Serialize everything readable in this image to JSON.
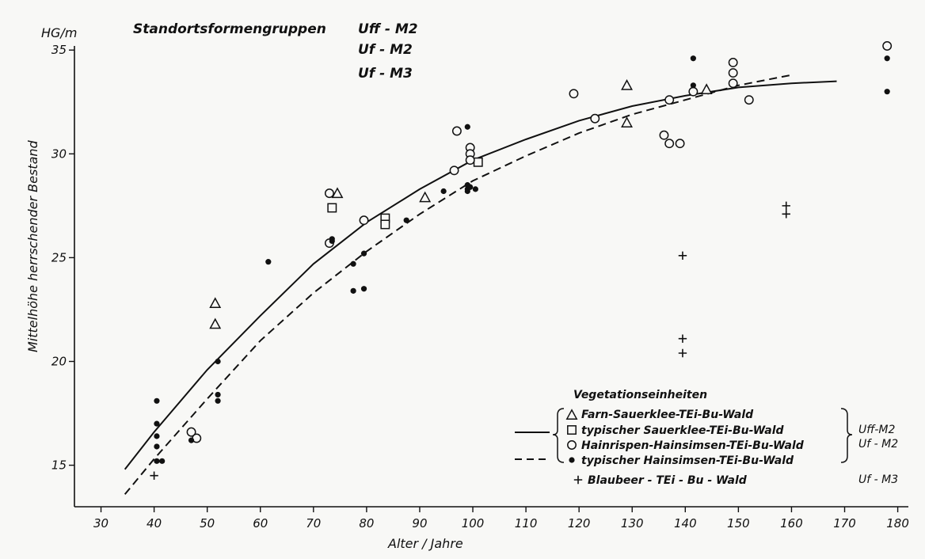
{
  "chart_data": {
    "type": "scatter",
    "title": "Standortsformengruppen",
    "title_groups": [
      "Uff - M2",
      "Uf - M2",
      "Uf - M3"
    ],
    "y_unit": "HG/m",
    "xlabel": "Alter / Jahre",
    "ylabel": "Mittelhöhe herrschender Bestand",
    "xlim": [
      25,
      182
    ],
    "ylim": [
      13,
      35.2
    ],
    "x_ticks": [
      30,
      40,
      50,
      60,
      70,
      80,
      90,
      100,
      110,
      120,
      130,
      140,
      150,
      160,
      170,
      180
    ],
    "y_ticks": [
      15,
      20,
      25,
      30,
      35
    ],
    "grid": false,
    "legend_position": "bottom-right",
    "legend_title": "Vegetationseinheiten",
    "series": [
      {
        "name": "Farn-Sauerklee-TEi-Bu-Wald",
        "marker": "triangle",
        "points": [
          [
            51.5,
            22.8
          ],
          [
            51.5,
            21.8
          ],
          [
            74.5,
            28.1
          ],
          [
            91,
            27.9
          ],
          [
            129,
            33.3
          ],
          [
            129,
            31.5
          ],
          [
            144,
            33.1
          ]
        ]
      },
      {
        "name": "typischer Sauerklee-TEi-Bu-Wald",
        "marker": "square",
        "points": [
          [
            73.5,
            27.4
          ],
          [
            83.5,
            26.9
          ],
          [
            83.5,
            26.6
          ],
          [
            101,
            29.6
          ]
        ]
      },
      {
        "name": "Hainrispen-Hainsimsen-TEi-Bu-Wald",
        "marker": "circle-open",
        "points": [
          [
            47,
            16.6
          ],
          [
            48,
            16.3
          ],
          [
            73,
            28.1
          ],
          [
            73,
            25.7
          ],
          [
            79.5,
            26.8
          ],
          [
            96.5,
            29.2
          ],
          [
            97,
            31.1
          ],
          [
            99.5,
            30.3
          ],
          [
            99.5,
            30
          ],
          [
            99.5,
            29.7
          ],
          [
            119,
            32.9
          ],
          [
            123,
            31.7
          ],
          [
            136,
            30.9
          ],
          [
            137,
            32.6
          ],
          [
            137,
            30.5
          ],
          [
            139,
            30.5
          ],
          [
            141.5,
            33
          ],
          [
            149,
            34.4
          ],
          [
            149,
            33.9
          ],
          [
            149,
            33.4
          ],
          [
            152,
            32.6
          ],
          [
            178,
            35.2
          ]
        ]
      },
      {
        "name": "typischer Hainsimsen-TEi-Bu-Wald",
        "marker": "circle-filled",
        "points": [
          [
            40.5,
            18.1
          ],
          [
            40.5,
            17
          ],
          [
            40.5,
            16.4
          ],
          [
            40.5,
            15.9
          ],
          [
            40.5,
            15.2
          ],
          [
            41.5,
            15.2
          ],
          [
            47,
            16.2
          ],
          [
            52,
            20
          ],
          [
            52,
            18.4
          ],
          [
            52,
            18.1
          ],
          [
            73.5,
            25.9
          ],
          [
            73.5,
            25.8
          ],
          [
            61.5,
            24.8
          ],
          [
            77.5,
            24.7
          ],
          [
            79.5,
            25.2
          ],
          [
            77.5,
            23.4
          ],
          [
            79.5,
            23.5
          ],
          [
            87.5,
            26.8
          ],
          [
            94.5,
            28.2
          ],
          [
            99,
            31.3
          ],
          [
            99,
            28.5
          ],
          [
            99,
            28.3
          ],
          [
            99,
            28.2
          ],
          [
            99.5,
            28.4
          ],
          [
            100.5,
            28.3
          ],
          [
            141.5,
            34.6
          ],
          [
            141.5,
            33.3
          ],
          [
            178,
            34.6
          ],
          [
            178,
            33
          ]
        ]
      },
      {
        "name": "Blaubeer-TEi-Bu-Wald",
        "marker": "plus",
        "points": [
          [
            40,
            14.5
          ],
          [
            139.5,
            25.1
          ],
          [
            139.5,
            21.1
          ],
          [
            139.5,
            20.4
          ],
          [
            159,
            27.5
          ],
          [
            159,
            27.1
          ]
        ]
      }
    ],
    "curves": [
      {
        "name": "Uff-M2, Uf-M2",
        "style": "solid",
        "points": [
          [
            34.5,
            14.8
          ],
          [
            40,
            16.6
          ],
          [
            50,
            19.6
          ],
          [
            60,
            22.2
          ],
          [
            70,
            24.7
          ],
          [
            80,
            26.7
          ],
          [
            90,
            28.3
          ],
          [
            100,
            29.7
          ],
          [
            110,
            30.7
          ],
          [
            120,
            31.6
          ],
          [
            130,
            32.3
          ],
          [
            140,
            32.8
          ],
          [
            150,
            33.2
          ],
          [
            160,
            33.4
          ],
          [
            168.5,
            33.5
          ]
        ]
      },
      {
        "name": "Uf-M2",
        "style": "dashed",
        "points": [
          [
            34.5,
            13.6
          ],
          [
            40,
            15.3
          ],
          [
            50,
            18.2
          ],
          [
            60,
            21
          ],
          [
            70,
            23.3
          ],
          [
            80,
            25.3
          ],
          [
            90,
            27.1
          ],
          [
            100,
            28.7
          ],
          [
            110,
            29.9
          ],
          [
            120,
            31
          ],
          [
            130,
            31.9
          ],
          [
            140,
            32.6
          ],
          [
            150,
            33.3
          ],
          [
            160,
            33.8
          ]
        ]
      }
    ],
    "legend": {
      "title": "Vegetationseinheiten",
      "entries": [
        {
          "marker": "triangle",
          "label": "Farn-Sauerklee-TEi-Bu-Wald"
        },
        {
          "marker": "square",
          "label": "typischer Sauerklee-TEi-Bu-Wald"
        },
        {
          "marker": "circle-open",
          "label": "Hainrispen-Hainsimsen-TEi-Bu-Wald"
        },
        {
          "marker": "circle-filled",
          "label": "typischer Hainsimsen-TEi-Bu-Wald"
        },
        {
          "marker": "plus",
          "label": "Blaubeer - TEi - Bu - Wald"
        }
      ],
      "group_labels": [
        "Uff-M2",
        "Uf - M2",
        "Uf - M3"
      ]
    }
  },
  "colors": {
    "ink": "#111111",
    "paper": "#f8f8f6"
  }
}
